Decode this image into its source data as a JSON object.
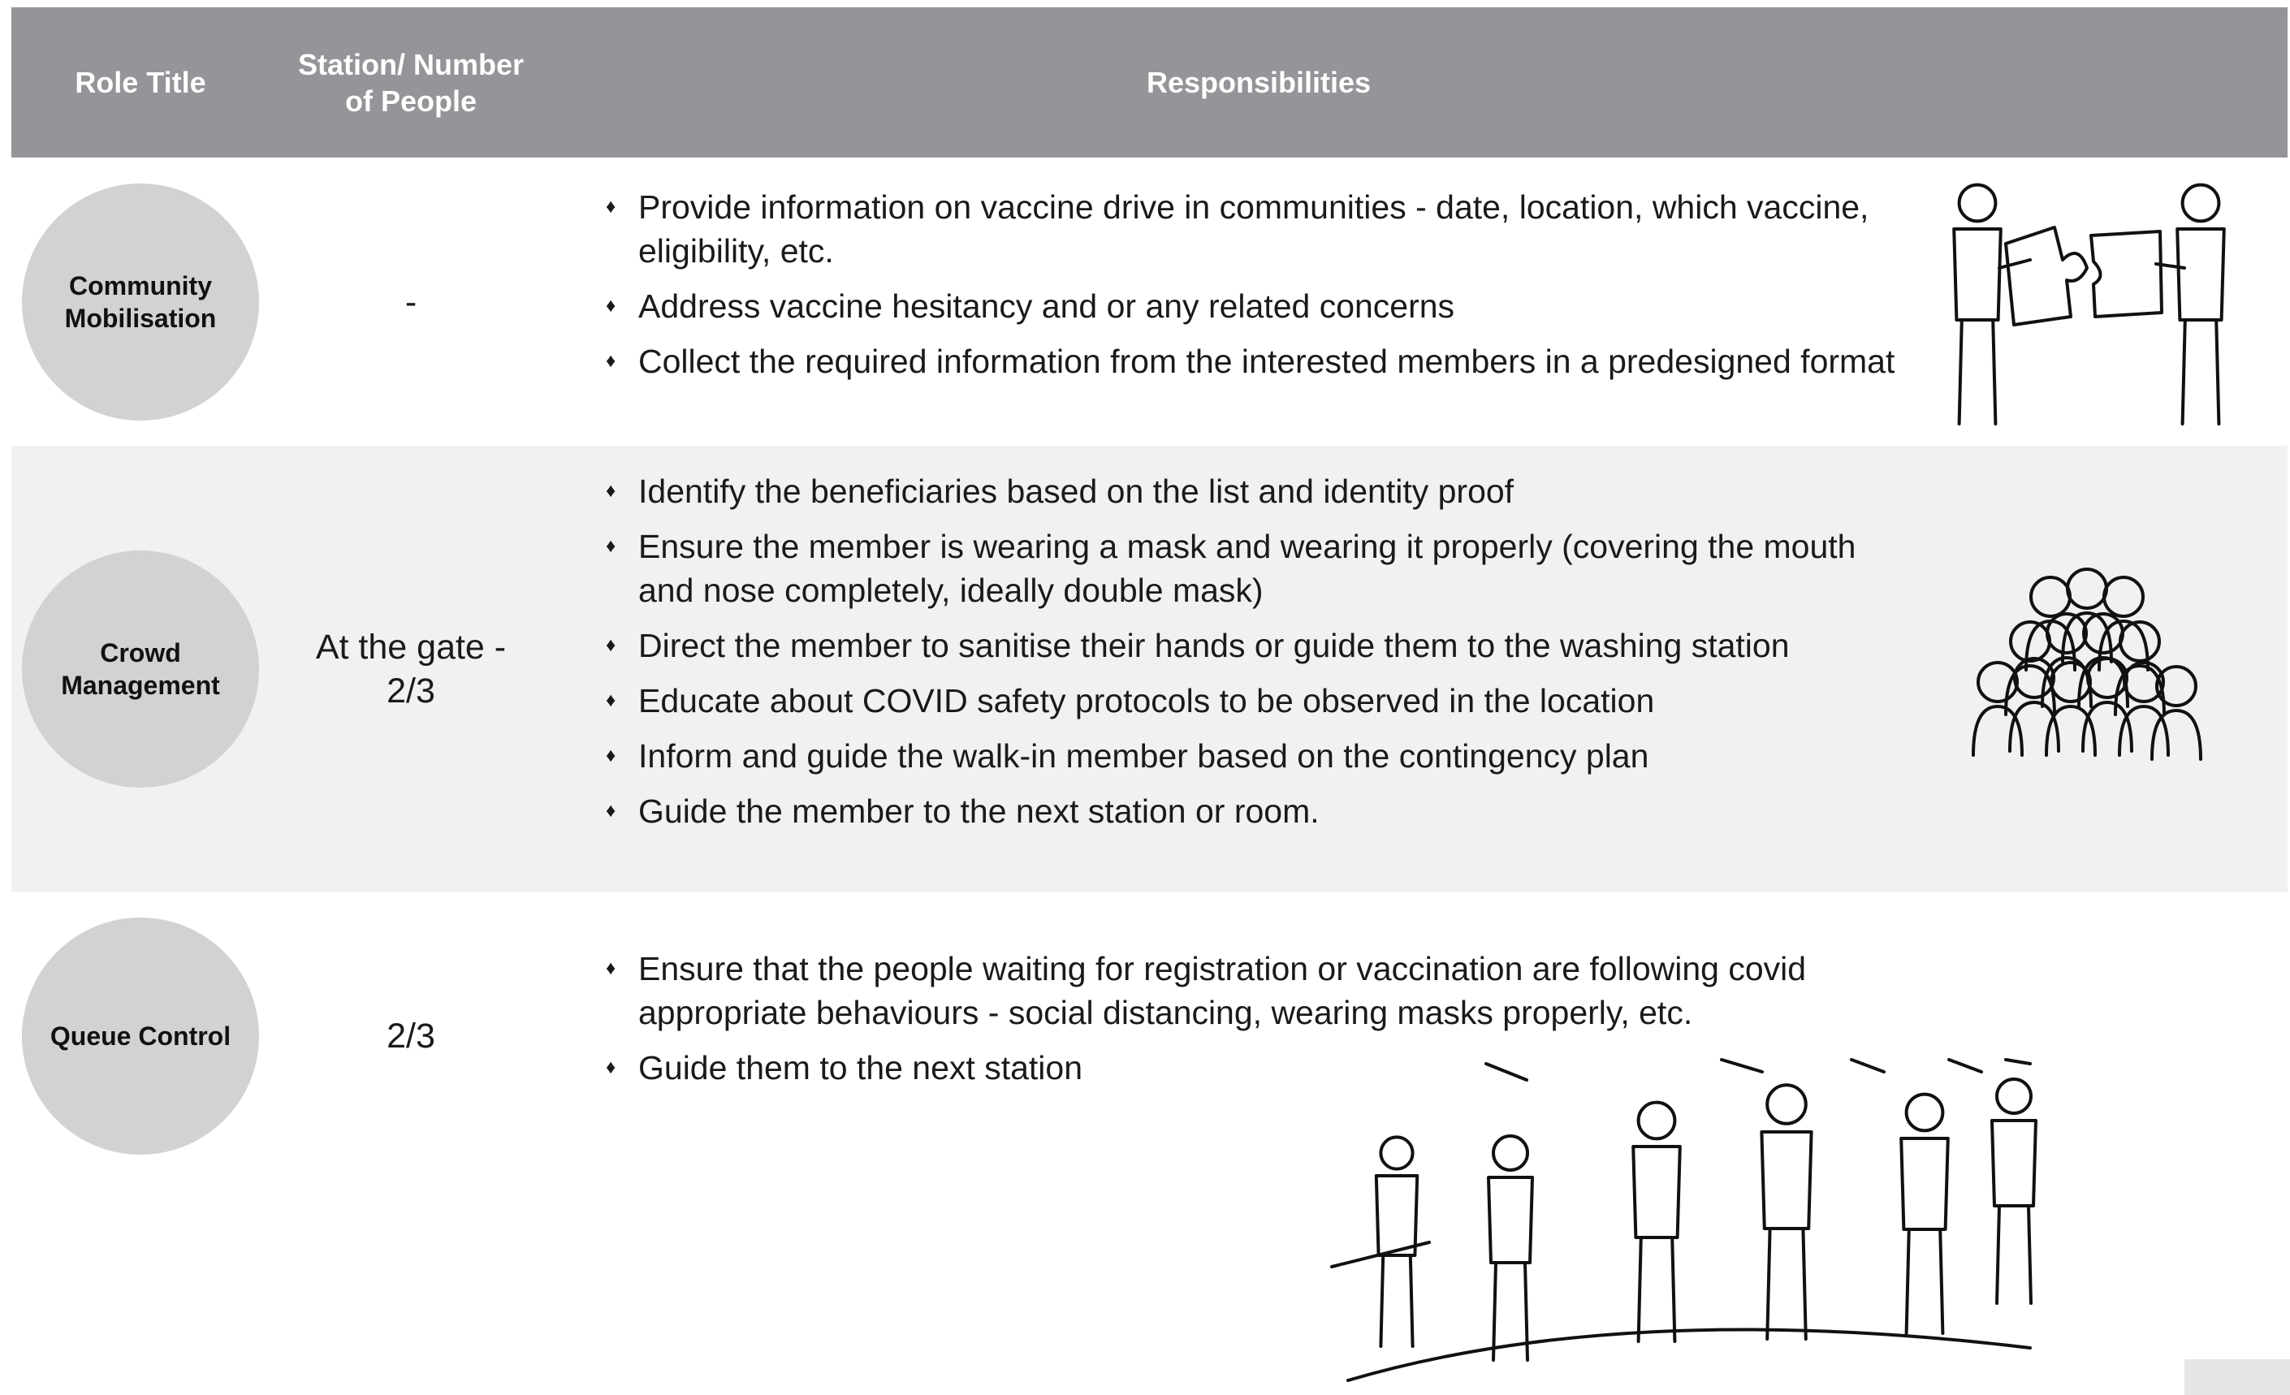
{
  "header": {
    "columns": [
      "Role Title",
      "Station/ Number of People",
      "Responsibilities"
    ]
  },
  "rows": [
    {
      "role": "Community Mobilisation",
      "station": "-",
      "responsibilities": [
        "Provide information on vaccine drive in communities - date, location, which vaccine, eligibility, etc.",
        "Address vaccine hesitancy and or any related concerns",
        "Collect the required information from the interested members in a predesigned format"
      ]
    },
    {
      "role": "Crowd Management",
      "station": "At the gate - 2/3",
      "responsibilities": [
        "Identify the beneficiaries based on the list and identity proof",
        "Ensure the member is wearing a mask and wearing it properly (covering the mouth and nose completely, ideally double mask)",
        "Direct the member to sanitise their hands or guide them to the washing station",
        "Educate about COVID safety protocols to be observed in the location",
        "Inform and guide the walk-in member based on the contingency plan",
        "Guide the member to the next station or room."
      ]
    },
    {
      "role": "Queue Control",
      "station": "2/3",
      "responsibilities": [
        "Ensure that the people waiting for registration or vaccination are following covid appropriate behaviours - social distancing, wearing masks properly, etc.",
        "Guide them to the next station"
      ]
    }
  ]
}
